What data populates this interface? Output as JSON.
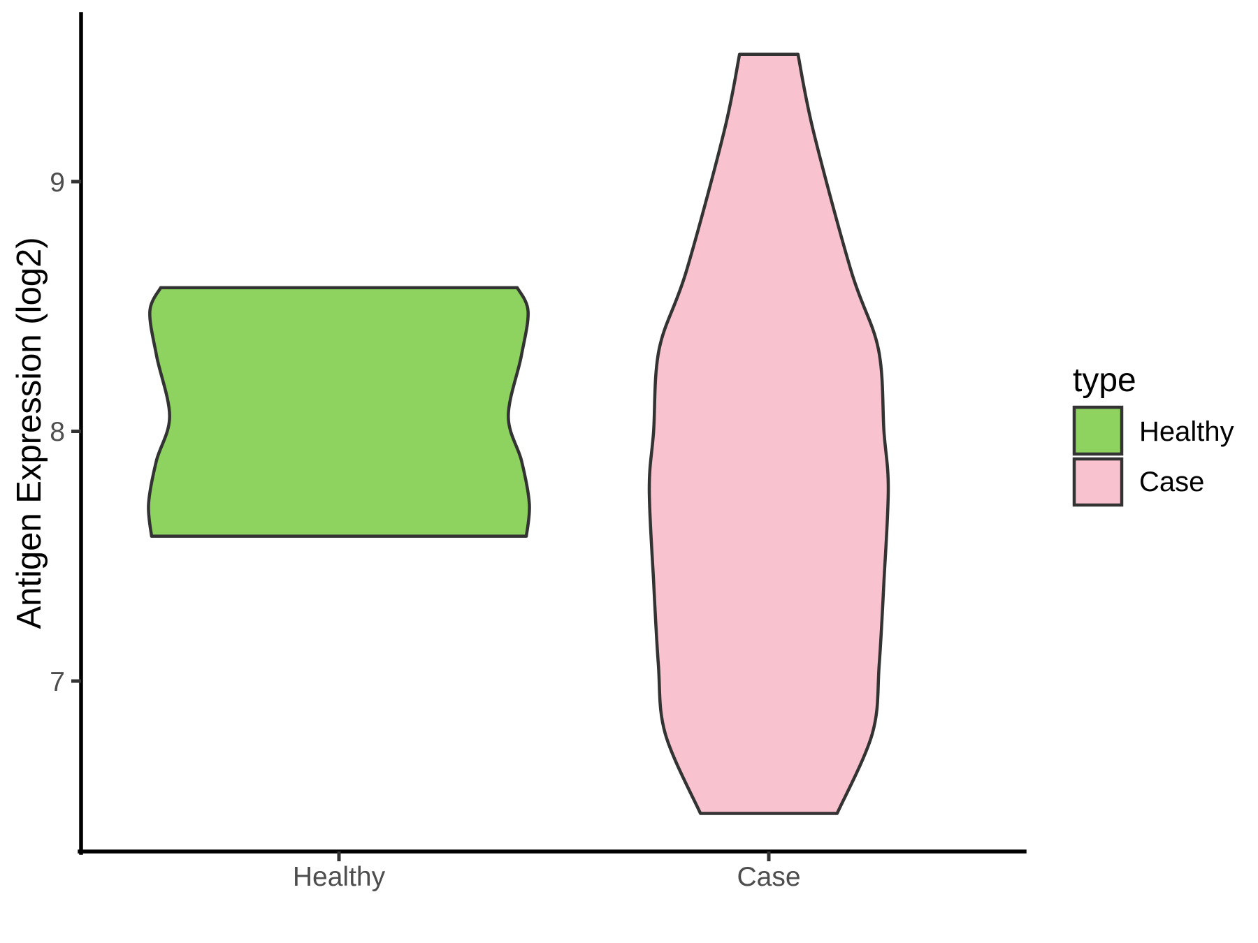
{
  "chart": {
    "y_axis_title": "Antigen Expression (log2)",
    "y_tick_labels": [
      "9",
      "8",
      "7"
    ],
    "x_tick_labels": [
      "Healthy",
      "Case"
    ],
    "legend_title": "type",
    "legend_labels": [
      "Healthy",
      "Case"
    ]
  },
  "chart_data": {
    "type": "violin",
    "categories": [
      "Healthy",
      "Case"
    ],
    "xlabel": "",
    "ylabel": "Antigen Expression (log2)",
    "y_ticks": [
      7,
      8,
      9
    ],
    "ylim": [
      6.3,
      9.68
    ],
    "xlim": [
      0.4,
      2.6
    ],
    "grid": false,
    "legend": {
      "title": "type",
      "position": "right"
    },
    "stroke": "#333333",
    "colors": {
      "healthy_fill": "#8ed35f",
      "case_fill": "#f8c3cf",
      "axis_text": "#4d4d4d",
      "axis_line": "#000000"
    },
    "series": [
      {
        "name": "Healthy",
        "color": "#8ed35f",
        "x_position": 1,
        "y_min": 7.58,
        "y_max": 8.58,
        "profile": [
          {
            "v": 8.575,
            "hw": 0.415
          },
          {
            "v": 8.48,
            "hw": 0.44
          },
          {
            "v": 8.3,
            "hw": 0.424
          },
          {
            "v": 8.06,
            "hw": 0.394
          },
          {
            "v": 7.88,
            "hw": 0.425
          },
          {
            "v": 7.71,
            "hw": 0.443
          },
          {
            "v": 7.58,
            "hw": 0.436
          }
        ]
      },
      {
        "name": "Case",
        "color": "#f8c3cf",
        "x_position": 2,
        "y_min": 6.47,
        "y_max": 9.51,
        "profile": [
          {
            "v": 9.51,
            "hw": 0.068
          },
          {
            "v": 9.2,
            "hw": 0.104
          },
          {
            "v": 8.64,
            "hw": 0.192
          },
          {
            "v": 8.33,
            "hw": 0.255
          },
          {
            "v": 8.0,
            "hw": 0.268
          },
          {
            "v": 7.77,
            "hw": 0.278
          },
          {
            "v": 7.4,
            "hw": 0.268
          },
          {
            "v": 7.07,
            "hw": 0.257
          },
          {
            "v": 6.79,
            "hw": 0.241
          },
          {
            "v": 6.47,
            "hw": 0.159
          }
        ]
      }
    ]
  }
}
